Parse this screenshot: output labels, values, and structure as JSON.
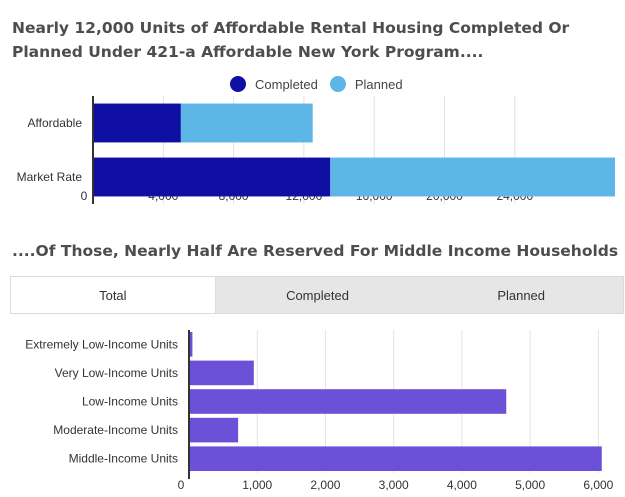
{
  "colors": {
    "completed": "#0f0fa3",
    "planned": "#5eb6e6",
    "income": "#6a51d8"
  },
  "title1": "Nearly 12,000 Units of Affordable Rental Housing Completed Or Planned Under 421-a Affordable New York Program....",
  "title2": "....Of Those, Nearly Half Are Reserved For Middle Income Households",
  "tabs": [
    "Total",
    "Completed",
    "Planned"
  ],
  "chart_data": [
    {
      "type": "bar",
      "orientation": "horizontal",
      "stacked": true,
      "categories": [
        "Affordable",
        "Market Rate"
      ],
      "series": [
        {
          "name": "Completed",
          "values": [
            5000,
            13500
          ]
        },
        {
          "name": "Planned",
          "values": [
            7500,
            16200
          ]
        }
      ],
      "xlim": [
        0,
        29700
      ],
      "x_ticks": [
        0,
        4000,
        8000,
        12000,
        16000,
        20000,
        24000
      ],
      "x_tick_labels": [
        "0",
        "4,000",
        "8,000",
        "12,000",
        "16,000",
        "20,000",
        "24,000"
      ],
      "legend": "top-center"
    },
    {
      "type": "bar",
      "orientation": "horizontal",
      "categories": [
        "Extremely Low-Income Units",
        "Very Low-Income Units",
        "Low-Income Units",
        "Moderate-Income Units",
        "Middle-Income Units"
      ],
      "values": [
        50,
        950,
        4650,
        720,
        6050
      ],
      "xlim": [
        0,
        6200
      ],
      "x_ticks": [
        0,
        1000,
        2000,
        3000,
        4000,
        5000,
        6000
      ],
      "x_tick_labels": [
        "0",
        "1,000",
        "2,000",
        "3,000",
        "4,000",
        "5,000",
        "6,000"
      ],
      "active_tab": "Total"
    }
  ]
}
